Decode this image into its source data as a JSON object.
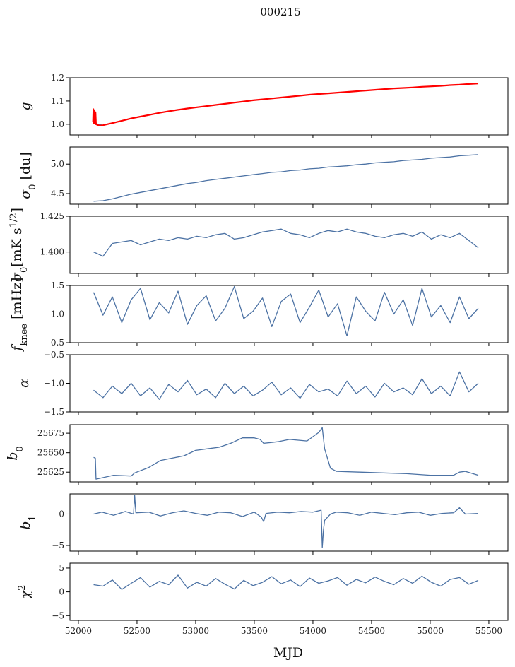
{
  "title": "000215",
  "chart_data": {
    "type": "line",
    "title": "000215",
    "xlabel": "MJD",
    "xlim": [
      51928,
      55663
    ],
    "xticks": [
      52000,
      52500,
      53000,
      53500,
      54000,
      54500,
      55000,
      55500
    ],
    "x_grid": {
      "start": 52130,
      "step": 80,
      "count": 42
    },
    "colors": {
      "series": "#4c72a4",
      "overlay": "#ff0000"
    },
    "panels": [
      {
        "ylabel": [
          {
            "t": "g",
            "it": true
          }
        ],
        "ylim": [
          0.954,
          1.2
        ],
        "yticks": [
          "1.0",
          "1.1",
          "1.2"
        ],
        "series": [
          {
            "name": "g",
            "color": "#4c72a4",
            "values": [
              1.005,
              0.996,
              1.005,
              1.015,
              1.025,
              1.033,
              1.041,
              1.049,
              1.056,
              1.062,
              1.068,
              1.073,
              1.078,
              1.083,
              1.088,
              1.093,
              1.098,
              1.103,
              1.107,
              1.111,
              1.115,
              1.119,
              1.123,
              1.127,
              1.13,
              1.133,
              1.136,
              1.139,
              1.142,
              1.145,
              1.148,
              1.151,
              1.154,
              1.156,
              1.158,
              1.161,
              1.163,
              1.165,
              1.168,
              1.17,
              1.173,
              1.175
            ]
          },
          {
            "name": "g_fit",
            "color": "#ff0000",
            "x": [
              52125,
              52128,
              52131,
              52134,
              52137,
              52140,
              52143,
              52146,
              52150,
              52180,
              52210,
              52290,
              52370,
              52450,
              52530,
              52610,
              52690,
              52770,
              52850,
              52930,
              53010,
              53090,
              53170,
              53250,
              53330,
              53410,
              53490,
              53570,
              53650,
              53730,
              53810,
              53890,
              53970,
              54050,
              54130,
              54210,
              54290,
              54370,
              54450,
              54530,
              54610,
              54690,
              54770,
              54850,
              54930,
              55010,
              55090,
              55170,
              55250,
              55330,
              55410
            ],
            "values": [
              1.01,
              1.065,
              1.005,
              1.06,
              1.003,
              1.055,
              1.002,
              1.05,
              1.0,
              0.994,
              0.996,
              1.005,
              1.015,
              1.025,
              1.033,
              1.041,
              1.049,
              1.056,
              1.062,
              1.068,
              1.073,
              1.078,
              1.083,
              1.088,
              1.093,
              1.098,
              1.103,
              1.107,
              1.111,
              1.115,
              1.119,
              1.123,
              1.127,
              1.13,
              1.133,
              1.136,
              1.139,
              1.142,
              1.145,
              1.148,
              1.151,
              1.154,
              1.156,
              1.158,
              1.161,
              1.163,
              1.165,
              1.168,
              1.17,
              1.173,
              1.175
            ]
          }
        ]
      },
      {
        "ylabel": [
          {
            "t": "σ",
            "it": true
          },
          {
            "t": "0",
            "sub": true
          },
          {
            "t": " [du]"
          }
        ],
        "ylim": [
          4.32,
          5.29
        ],
        "yticks": [
          "4.5",
          "5.0"
        ],
        "series": [
          {
            "name": "sigma0_du",
            "color": "#4c72a4",
            "values": [
              4.37,
              4.38,
              4.41,
              4.45,
              4.49,
              4.52,
              4.55,
              4.58,
              4.61,
              4.64,
              4.67,
              4.69,
              4.72,
              4.74,
              4.76,
              4.78,
              4.8,
              4.82,
              4.84,
              4.86,
              4.87,
              4.89,
              4.9,
              4.92,
              4.93,
              4.95,
              4.96,
              4.97,
              4.99,
              5.0,
              5.02,
              5.03,
              5.04,
              5.06,
              5.07,
              5.08,
              5.1,
              5.11,
              5.12,
              5.14,
              5.15,
              5.16
            ]
          }
        ]
      },
      {
        "ylabel": [
          {
            "t": "σ",
            "it": true
          },
          {
            "t": "0",
            "sub": true
          },
          {
            "t": "[mK s"
          },
          {
            "t": "1/2",
            "sup": true
          },
          {
            "t": "]"
          }
        ],
        "ylim": [
          1.385,
          1.425
        ],
        "yticks": [
          "1.400",
          "1.425"
        ],
        "series": [
          {
            "name": "sigma0_mK",
            "color": "#4c72a4",
            "values": [
              1.4,
              1.397,
              1.406,
              1.407,
              1.408,
              1.405,
              1.407,
              1.409,
              1.408,
              1.41,
              1.409,
              1.411,
              1.41,
              1.412,
              1.413,
              1.409,
              1.41,
              1.412,
              1.414,
              1.415,
              1.416,
              1.413,
              1.412,
              1.41,
              1.413,
              1.415,
              1.414,
              1.416,
              1.414,
              1.413,
              1.411,
              1.41,
              1.412,
              1.413,
              1.411,
              1.414,
              1.409,
              1.412,
              1.41,
              1.413,
              1.408,
              1.403
            ]
          }
        ]
      },
      {
        "ylabel": [
          {
            "t": "f",
            "it": true
          },
          {
            "t": "knee",
            "sub": true
          },
          {
            "t": " [mHz]"
          }
        ],
        "ylim": [
          0.5,
          1.5
        ],
        "yticks": [
          "0.5",
          "1.0",
          "1.5"
        ],
        "series": [
          {
            "name": "fknee",
            "color": "#4c72a4",
            "values": [
              1.38,
              0.98,
              1.3,
              0.85,
              1.25,
              1.45,
              0.9,
              1.2,
              1.02,
              1.4,
              0.82,
              1.15,
              1.32,
              0.88,
              1.1,
              1.48,
              0.92,
              1.05,
              1.28,
              0.78,
              1.22,
              1.35,
              0.85,
              1.12,
              1.42,
              0.95,
              1.18,
              0.62,
              1.3,
              1.05,
              0.88,
              1.38,
              1.0,
              1.25,
              0.8,
              1.45,
              0.95,
              1.15,
              0.85,
              1.3,
              0.92,
              1.1
            ]
          }
        ]
      },
      {
        "ylabel": [
          {
            "t": "α",
            "it": true
          }
        ],
        "ylim": [
          -1.5,
          -0.5
        ],
        "yticks": [
          "−1.5",
          "−1.0",
          "−0.5"
        ],
        "series": [
          {
            "name": "alpha",
            "color": "#4c72a4",
            "values": [
              -1.12,
              -1.25,
              -1.05,
              -1.18,
              -1.0,
              -1.22,
              -1.08,
              -1.28,
              -1.02,
              -1.15,
              -0.95,
              -1.2,
              -1.1,
              -1.25,
              -1.0,
              -1.18,
              -1.05,
              -1.22,
              -1.12,
              -0.98,
              -1.2,
              -1.08,
              -1.26,
              -1.02,
              -1.15,
              -1.1,
              -1.22,
              -0.96,
              -1.18,
              -1.05,
              -1.24,
              -1.0,
              -1.15,
              -1.08,
              -1.2,
              -0.92,
              -1.18,
              -1.05,
              -1.22,
              -0.8,
              -1.15,
              -1.0
            ]
          }
        ]
      },
      {
        "ylabel": [
          {
            "t": "b",
            "it": true
          },
          {
            "t": "0",
            "sub": true
          }
        ],
        "ylim": [
          25612.5,
          25686
        ],
        "yticks": [
          "25625",
          "25650",
          "25675"
        ],
        "series": [
          {
            "name": "b0",
            "color": "#4c72a4",
            "x": [
              52130,
              52145,
              52150,
              52300,
              52450,
              52480,
              52600,
              52700,
              52800,
              52900,
              53000,
              53100,
              53200,
              53300,
              53400,
              53500,
              53550,
              53580,
              53700,
              53800,
              53950,
              54050,
              54080,
              54100,
              54150,
              54200,
              54400,
              54600,
              54800,
              55000,
              55200,
              55250,
              55300,
              55410
            ],
            "values": [
              25644,
              25643,
              25616,
              25621,
              25620,
              25624,
              25631,
              25640,
              25643,
              25646,
              25653,
              25655,
              25657,
              25662,
              25669,
              25669,
              25667,
              25662,
              25664,
              25667,
              25665,
              25676,
              25682,
              25655,
              25630,
              25626,
              25625,
              25624,
              25623,
              25621,
              25621,
              25625,
              25626,
              25621
            ]
          }
        ]
      },
      {
        "ylabel": [
          {
            "t": "b",
            "it": true
          },
          {
            "t": "1",
            "sub": true
          }
        ],
        "ylim": [
          -5.9,
          3.2
        ],
        "yticks": [
          "−5",
          "0"
        ],
        "series": [
          {
            "name": "b1",
            "color": "#4c72a4",
            "x": [
              52130,
              52200,
              52300,
              52400,
              52470,
              52480,
              52490,
              52600,
              52700,
              52800,
              52900,
              53000,
              53100,
              53200,
              53300,
              53400,
              53500,
              53560,
              53580,
              53600,
              53700,
              53800,
              53900,
              54000,
              54070,
              54080,
              54090,
              54100,
              54150,
              54200,
              54300,
              54400,
              54500,
              54600,
              54700,
              54800,
              54900,
              55000,
              55100,
              55200,
              55250,
              55300,
              55410
            ],
            "values": [
              0,
              0.3,
              -0.2,
              0.4,
              0,
              3.0,
              0.2,
              0.3,
              -0.3,
              0.2,
              0.5,
              0.1,
              -0.2,
              0.3,
              0.2,
              -0.4,
              0.3,
              -0.5,
              -1.2,
              0.1,
              0.3,
              0.2,
              0.4,
              0.3,
              0.6,
              -5.3,
              -2.5,
              -1.0,
              0,
              0.3,
              0.2,
              -0.2,
              0.3,
              0.1,
              -0.1,
              0.2,
              0.3,
              -0.2,
              0.1,
              0.2,
              1.0,
              0,
              0.1
            ]
          }
        ]
      },
      {
        "ylabel": [
          {
            "t": "χ",
            "it": true
          },
          {
            "t": "2",
            "sup": true
          }
        ],
        "ylim": [
          -6,
          6.03
        ],
        "yticks": [
          "−5",
          "0",
          "5"
        ],
        "series": [
          {
            "name": "chi2",
            "color": "#4c72a4",
            "values": [
              1.5,
              1.2,
              2.5,
              0.5,
              1.8,
              3.0,
              1.0,
              2.2,
              1.5,
              3.5,
              0.8,
              2.0,
              1.2,
              2.8,
              1.6,
              0.6,
              2.4,
              1.3,
              2.0,
              3.2,
              1.7,
              2.5,
              1.1,
              2.9,
              1.8,
              2.3,
              3.0,
              1.4,
              2.6,
              1.9,
              3.1,
              2.2,
              1.5,
              2.8,
              1.8,
              3.3,
              2.0,
              1.2,
              2.6,
              3.0,
              1.6,
              2.4
            ]
          }
        ]
      }
    ]
  }
}
